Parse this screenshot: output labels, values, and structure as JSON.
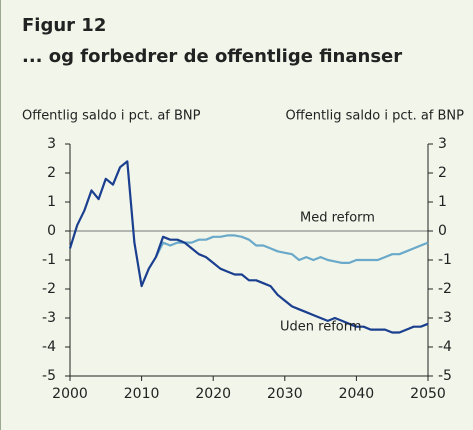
{
  "chart_data": {
    "type": "line",
    "title": "Figur 12",
    "subtitle": "... og forbedrer de offentlige finanser",
    "y_label": "Offentlig saldo i pct. af BNP",
    "y2_label": "Offentlig saldo i pct. af BNP",
    "x": [
      2000,
      2001,
      2002,
      2003,
      2004,
      2005,
      2006,
      2007,
      2008,
      2009,
      2010,
      2011,
      2012,
      2013,
      2014,
      2015,
      2016,
      2017,
      2018,
      2019,
      2020,
      2021,
      2022,
      2023,
      2024,
      2025,
      2026,
      2027,
      2028,
      2029,
      2030,
      2031,
      2032,
      2033,
      2034,
      2035,
      2036,
      2037,
      2038,
      2039,
      2040,
      2041,
      2042,
      2043,
      2044,
      2045,
      2046,
      2047,
      2048,
      2049,
      2050
    ],
    "series": [
      {
        "name": "Med reform",
        "color": "#6aa9c9",
        "values": [
          null,
          null,
          null,
          null,
          null,
          null,
          null,
          null,
          null,
          null,
          null,
          null,
          -0.9,
          -0.4,
          -0.5,
          -0.4,
          -0.4,
          -0.4,
          -0.3,
          -0.3,
          -0.2,
          -0.2,
          -0.15,
          -0.15,
          -0.2,
          -0.3,
          -0.5,
          -0.5,
          -0.6,
          -0.7,
          -0.75,
          -0.8,
          -1.0,
          -0.9,
          -1.0,
          -0.9,
          -1.0,
          -1.05,
          -1.1,
          -1.1,
          -1.0,
          -1.0,
          -1.0,
          -1.0,
          -0.9,
          -0.8,
          -0.8,
          -0.7,
          -0.6,
          -0.5,
          -0.4
        ]
      },
      {
        "name": "Uden reform",
        "color": "#1b3f8f",
        "values": [
          -0.6,
          0.2,
          0.7,
          1.4,
          1.1,
          1.8,
          1.6,
          2.2,
          2.4,
          -0.4,
          -1.9,
          -1.3,
          -0.9,
          -0.2,
          -0.3,
          -0.3,
          -0.4,
          -0.6,
          -0.8,
          -0.9,
          -1.1,
          -1.3,
          -1.4,
          -1.5,
          -1.5,
          -1.7,
          -1.7,
          -1.8,
          -1.9,
          -2.2,
          -2.4,
          -2.6,
          -2.7,
          -2.8,
          -2.9,
          -3.0,
          -3.1,
          -3.0,
          -3.1,
          -3.2,
          -3.3,
          -3.3,
          -3.4,
          -3.4,
          -3.4,
          -3.5,
          -3.5,
          -3.4,
          -3.3,
          -3.3,
          -3.2
        ]
      }
    ],
    "xlim": [
      2000,
      2050
    ],
    "xticks": [
      2000,
      2010,
      2020,
      2030,
      2040,
      2050
    ],
    "ylim": [
      -5,
      3
    ],
    "yticks": [
      -5,
      -4,
      -3,
      -2,
      -1,
      0,
      1,
      2,
      3
    ],
    "y2lim": [
      -5,
      3
    ],
    "y2ticks": [
      -5,
      -4,
      -3,
      -2,
      -1,
      0,
      1,
      2,
      3
    ]
  }
}
